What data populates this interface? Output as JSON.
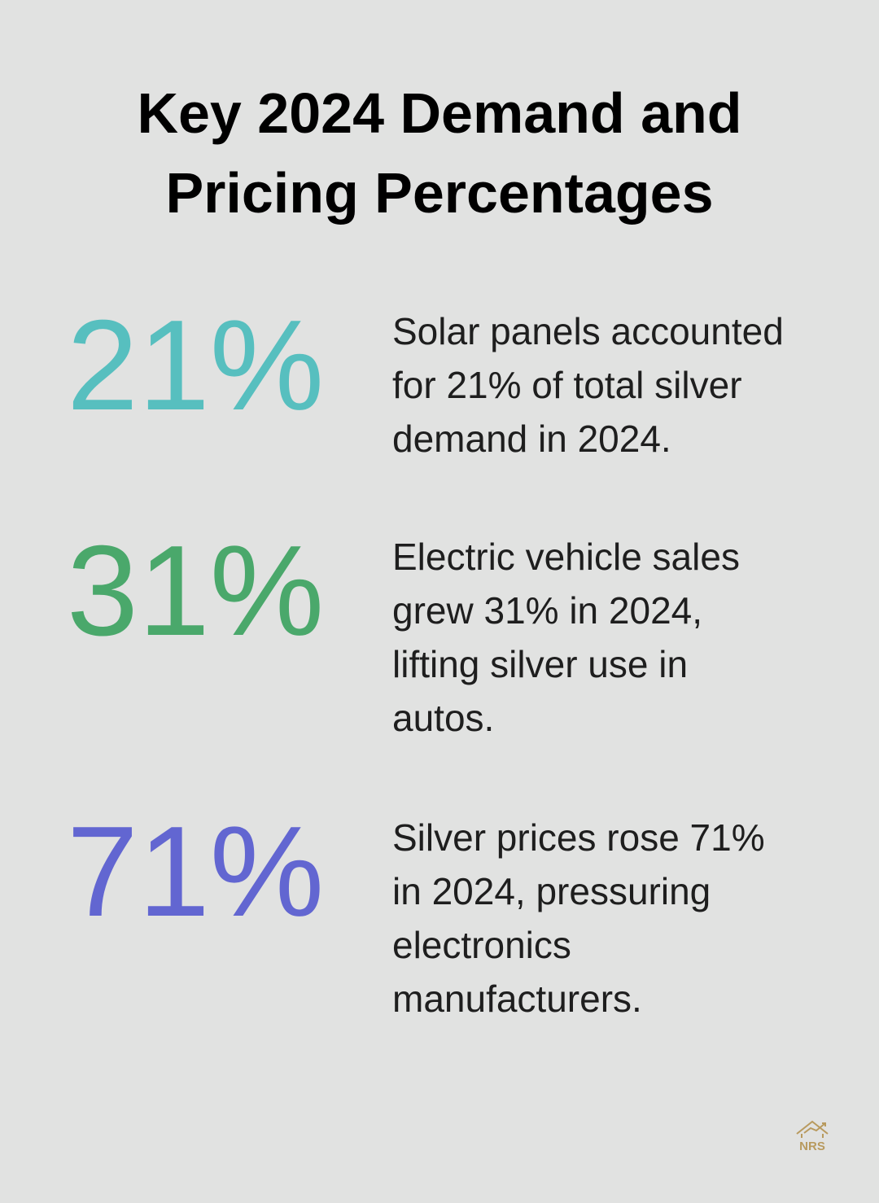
{
  "title": {
    "lines": [
      "Key 2024 Demand and",
      "Pricing Percentages"
    ]
  },
  "items": [
    {
      "stat": "21%",
      "description": [
        "Solar panels accounted",
        "for 21% of total silver",
        "demand in 2024."
      ]
    },
    {
      "stat": "31%",
      "description": [
        "Electric vehicle sales",
        "grew 31% in 2024,",
        "lifting silver use in",
        "autos."
      ]
    },
    {
      "stat": "71%",
      "description": [
        "Silver prices rose 71%",
        "in 2024, pressuring",
        "electronics",
        "manufacturers."
      ]
    }
  ],
  "logo": {
    "text": "NRS"
  }
}
